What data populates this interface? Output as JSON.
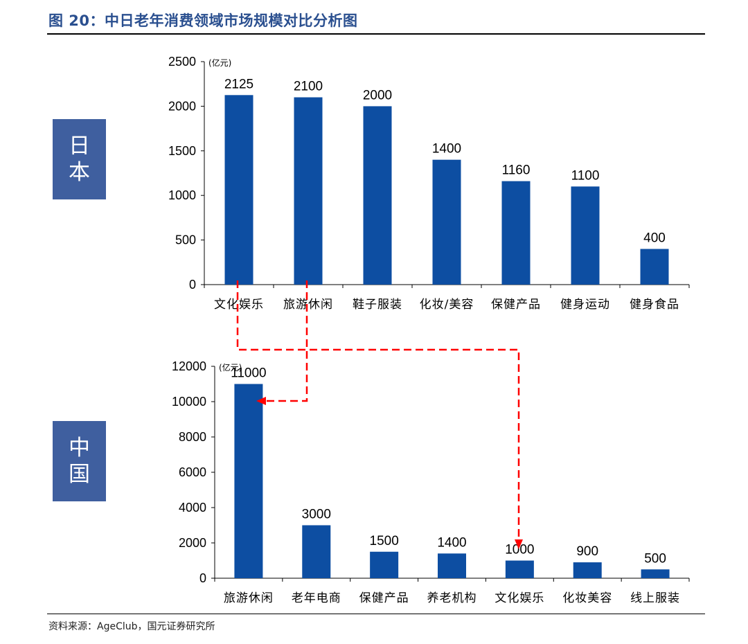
{
  "figure_title": "图 20：中日老年消费领域市场规模对比分析图",
  "source": "资料来源：AgeClub，国元证券研究所",
  "colors": {
    "bar": "#0d4ea2",
    "arrow": "#ff0000",
    "title": "#2a4f8f",
    "box": "#3f5f9f"
  },
  "chart_data": [
    {
      "type": "bar",
      "panel_label": "日本",
      "unit": "(亿元)",
      "categories": [
        "文化娱乐",
        "旅游休闲",
        "鞋子服装",
        "化妆/美容",
        "保健产品",
        "健身运动",
        "健身食品"
      ],
      "values": [
        2125,
        2100,
        2000,
        1400,
        1160,
        1100,
        400
      ],
      "ylim": [
        0,
        2500
      ],
      "yticks": [
        0,
        500,
        1000,
        1500,
        2000,
        2500
      ],
      "grid": false
    },
    {
      "type": "bar",
      "panel_label": "中国",
      "unit": "(亿元)",
      "categories": [
        "旅游休闲",
        "老年电商",
        "保健产品",
        "养老机构",
        "文化娱乐",
        "化妆美容",
        "线上服装"
      ],
      "values": [
        11000,
        3000,
        1500,
        1400,
        1000,
        900,
        500
      ],
      "ylim": [
        0,
        12000
      ],
      "yticks": [
        0,
        2000,
        4000,
        6000,
        8000,
        10000,
        12000
      ],
      "grid": false
    }
  ]
}
